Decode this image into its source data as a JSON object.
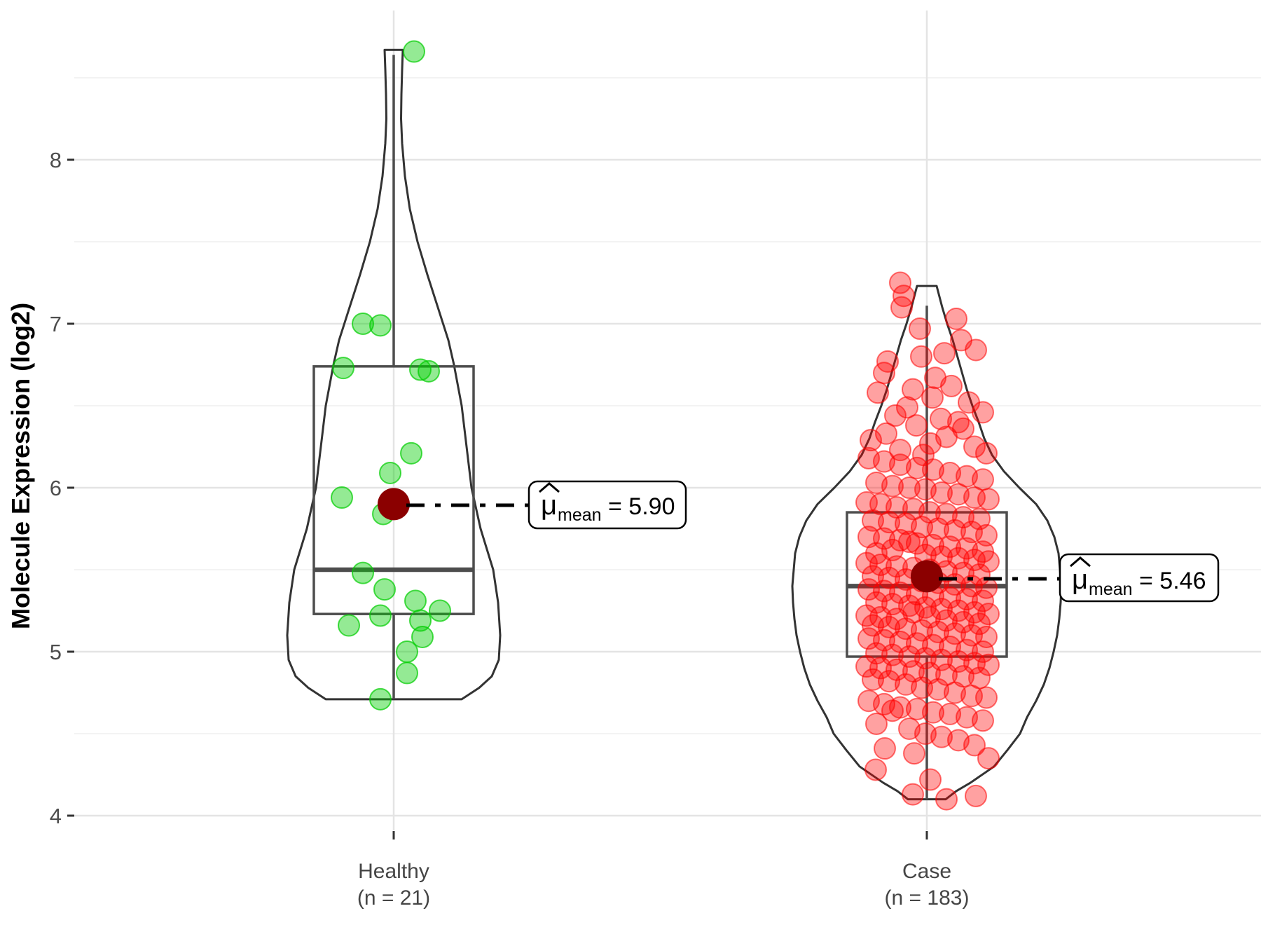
{
  "figure": {
    "background": "#ffffff"
  },
  "colors": {
    "healthy_point_fill": "rgba(0,205,0,0.42)",
    "healthy_point_stroke": "rgba(0,205,0,0.70)",
    "case_point_fill": "rgba(255,0,0,0.37)",
    "case_point_stroke": "rgba(255,0,0,0.55)",
    "mean_dot": "#8B0000",
    "violin_outline": "#333333",
    "box_stroke": "#4d4d4d",
    "grid_major": "#e4e4e4",
    "grid_minor": "#efefef",
    "axis_text": "#4d4d4d"
  },
  "chart_data": {
    "type": "violin",
    "title": "",
    "ylabel": "Molecule Expression (log2)",
    "xlabel": "",
    "ylim": [
      3.9,
      8.85
    ],
    "grid": "on",
    "y_ticks": [
      {
        "label": "8",
        "value": 8
      },
      {
        "label": "7",
        "value": 7
      },
      {
        "label": "6",
        "value": 6
      },
      {
        "label": "5",
        "value": 5
      },
      {
        "label": "4",
        "value": 4
      }
    ],
    "y_minor": [
      8.5,
      7.5,
      6.5,
      5.5,
      4.5
    ],
    "groups": [
      {
        "name": "Healthy",
        "n": 21,
        "x_label_line1": "Healthy",
        "x_label_line2": "(n = 21)",
        "mean": 5.9,
        "median": 5.5,
        "q1": 5.23,
        "q3": 6.74,
        "whisker_low": 4.71,
        "whisker_high": 8.64,
        "annotation": {
          "mu": "μ",
          "sub": "mean",
          "value": "= 5.90"
        },
        "point_fill": "rgba(0,205,0,0.42)",
        "point_stroke": "rgba(0,205,0,0.70)",
        "violin_profile": [
          [
            8.67,
            13
          ],
          [
            8.55,
            12
          ],
          [
            8.4,
            11
          ],
          [
            8.25,
            10.5
          ],
          [
            8.1,
            12
          ],
          [
            7.9,
            16
          ],
          [
            7.7,
            23
          ],
          [
            7.5,
            34
          ],
          [
            7.3,
            48
          ],
          [
            7.1,
            63
          ],
          [
            6.9,
            78
          ],
          [
            6.75,
            86
          ],
          [
            6.5,
            97
          ],
          [
            6.25,
            104
          ],
          [
            6.0,
            111
          ],
          [
            5.75,
            124
          ],
          [
            5.5,
            142
          ],
          [
            5.3,
            149
          ],
          [
            5.1,
            152
          ],
          [
            4.95,
            150
          ],
          [
            4.85,
            140
          ],
          [
            4.78,
            122
          ],
          [
            4.71,
            97
          ]
        ],
        "points": [
          [
            29,
            8.66
          ],
          [
            -44,
            7.0
          ],
          [
            -19,
            6.99
          ],
          [
            -72,
            6.73
          ],
          [
            38,
            6.72
          ],
          [
            50,
            6.71
          ],
          [
            25,
            6.21
          ],
          [
            -5,
            6.09
          ],
          [
            -74,
            5.94
          ],
          [
            -15,
            5.84
          ],
          [
            -44,
            5.48
          ],
          [
            -13,
            5.38
          ],
          [
            31,
            5.31
          ],
          [
            66,
            5.25
          ],
          [
            -19,
            5.22
          ],
          [
            38,
            5.19
          ],
          [
            -64,
            5.16
          ],
          [
            41,
            5.09
          ],
          [
            19,
            5.0
          ],
          [
            19,
            4.87
          ],
          [
            -19,
            4.71
          ]
        ]
      },
      {
        "name": "Case",
        "n": 183,
        "x_label_line1": "Case",
        "x_label_line2": "(n = 183)",
        "mean": 5.46,
        "median": 5.4,
        "q1": 4.97,
        "q3": 5.85,
        "whisker_low": 4.1,
        "whisker_high": 7.11,
        "annotation": {
          "mu": "μ",
          "sub": "mean",
          "value": "= 5.46"
        },
        "point_fill": "rgba(255,0,0,0.37)",
        "point_stroke": "rgba(255,0,0,0.55)",
        "violin_profile": [
          [
            7.23,
            14
          ],
          [
            7.1,
            22
          ],
          [
            7.0,
            29
          ],
          [
            6.9,
            37
          ],
          [
            6.75,
            47
          ],
          [
            6.6,
            57
          ],
          [
            6.5,
            65
          ],
          [
            6.4,
            74
          ],
          [
            6.3,
            82
          ],
          [
            6.2,
            93
          ],
          [
            6.1,
            110
          ],
          [
            6.0,
            132
          ],
          [
            5.9,
            156
          ],
          [
            5.8,
            172
          ],
          [
            5.7,
            182
          ],
          [
            5.6,
            188
          ],
          [
            5.5,
            190
          ],
          [
            5.4,
            192
          ],
          [
            5.3,
            191
          ],
          [
            5.2,
            189
          ],
          [
            5.1,
            186
          ],
          [
            5.0,
            181
          ],
          [
            4.9,
            175
          ],
          [
            4.8,
            167
          ],
          [
            4.7,
            156
          ],
          [
            4.6,
            143
          ],
          [
            4.5,
            133
          ],
          [
            4.4,
            115
          ],
          [
            4.3,
            96
          ],
          [
            4.2,
            62
          ],
          [
            4.15,
            42
          ],
          [
            4.1,
            27
          ]
        ],
        "points": [
          [
            -38,
            7.25
          ],
          [
            -33,
            7.17
          ],
          [
            -36,
            7.1
          ],
          [
            42,
            7.03
          ],
          [
            -10,
            6.97
          ],
          [
            49,
            6.9
          ],
          [
            70,
            6.84
          ],
          [
            25,
            6.82
          ],
          [
            -8,
            6.8
          ],
          [
            -56,
            6.77
          ],
          [
            -61,
            6.7
          ],
          [
            12,
            6.67
          ],
          [
            35,
            6.62
          ],
          [
            -20,
            6.6
          ],
          [
            -70,
            6.58
          ],
          [
            8,
            6.55
          ],
          [
            60,
            6.52
          ],
          [
            -28,
            6.49
          ],
          [
            80,
            6.46
          ],
          [
            -45,
            6.44
          ],
          [
            20,
            6.42
          ],
          [
            45,
            6.4
          ],
          [
            -15,
            6.38
          ],
          [
            52,
            6.36
          ],
          [
            -58,
            6.33
          ],
          [
            28,
            6.31
          ],
          [
            -80,
            6.29
          ],
          [
            5,
            6.27
          ],
          [
            68,
            6.25
          ],
          [
            -38,
            6.23
          ],
          [
            85,
            6.21
          ],
          [
            -5,
            6.2
          ],
          [
            -83,
            6.18
          ],
          [
            -61,
            6.16
          ],
          [
            -38,
            6.14
          ],
          [
            -14,
            6.12
          ],
          [
            9,
            6.11
          ],
          [
            33,
            6.09
          ],
          [
            57,
            6.07
          ],
          [
            80,
            6.05
          ],
          [
            -72,
            6.03
          ],
          [
            -49,
            6.01
          ],
          [
            -25,
            6.0
          ],
          [
            -2,
            5.99
          ],
          [
            21,
            5.97
          ],
          [
            45,
            5.96
          ],
          [
            68,
            5.94
          ],
          [
            88,
            5.93
          ],
          [
            -86,
            5.91
          ],
          [
            -66,
            5.9
          ],
          [
            -43,
            5.88
          ],
          [
            -19,
            5.87
          ],
          [
            4,
            5.85
          ],
          [
            28,
            5.84
          ],
          [
            52,
            5.82
          ],
          [
            75,
            5.81
          ],
          [
            -77,
            5.8
          ],
          [
            -54,
            5.79
          ],
          [
            -30,
            5.78
          ],
          [
            -7,
            5.76
          ],
          [
            16,
            5.75
          ],
          [
            40,
            5.74
          ],
          [
            64,
            5.73
          ],
          [
            85,
            5.71
          ],
          [
            -83,
            5.7
          ],
          [
            -61,
            5.69
          ],
          [
            -38,
            5.68
          ],
          [
            -25,
            5.67
          ],
          [
            -14,
            5.66
          ],
          [
            9,
            5.65
          ],
          [
            33,
            5.64
          ],
          [
            57,
            5.63
          ],
          [
            -49,
            5.62
          ],
          [
            80,
            5.61
          ],
          [
            -72,
            5.6
          ],
          [
            -2,
            5.59
          ],
          [
            21,
            5.58
          ],
          [
            45,
            5.57
          ],
          [
            68,
            5.56
          ],
          [
            88,
            5.55
          ],
          [
            -86,
            5.54
          ],
          [
            -66,
            5.53
          ],
          [
            -43,
            5.52
          ],
          [
            -19,
            5.51
          ],
          [
            4,
            5.5
          ],
          [
            28,
            5.49
          ],
          [
            52,
            5.48
          ],
          [
            75,
            5.47
          ],
          [
            -77,
            5.46
          ],
          [
            -54,
            5.45
          ],
          [
            -30,
            5.44
          ],
          [
            -7,
            5.43
          ],
          [
            16,
            5.42
          ],
          [
            40,
            5.41
          ],
          [
            64,
            5.4
          ],
          [
            85,
            5.39
          ],
          [
            -83,
            5.38
          ],
          [
            -61,
            5.37
          ],
          [
            -38,
            5.36
          ],
          [
            -14,
            5.35
          ],
          [
            9,
            5.34
          ],
          [
            33,
            5.33
          ],
          [
            57,
            5.32
          ],
          [
            80,
            5.31
          ],
          [
            -72,
            5.3
          ],
          [
            -49,
            5.29
          ],
          [
            -25,
            5.28
          ],
          [
            -2,
            5.27
          ],
          [
            21,
            5.26
          ],
          [
            45,
            5.25
          ],
          [
            68,
            5.24
          ],
          [
            88,
            5.23
          ],
          [
            -86,
            5.22
          ],
          [
            -66,
            5.21
          ],
          [
            -43,
            5.2
          ],
          [
            -19,
            5.24
          ],
          [
            4,
            5.21
          ],
          [
            28,
            5.19
          ],
          [
            52,
            5.18
          ],
          [
            75,
            5.17
          ],
          [
            -77,
            5.16
          ],
          [
            -54,
            5.15
          ],
          [
            -30,
            5.14
          ],
          [
            -7,
            5.13
          ],
          [
            16,
            5.12
          ],
          [
            40,
            5.11
          ],
          [
            64,
            5.1
          ],
          [
            85,
            5.09
          ],
          [
            -83,
            5.08
          ],
          [
            -61,
            5.07
          ],
          [
            -38,
            5.06
          ],
          [
            -14,
            5.05
          ],
          [
            9,
            5.04
          ],
          [
            33,
            5.03
          ],
          [
            57,
            5.01
          ],
          [
            80,
            5.0
          ],
          [
            -72,
            4.99
          ],
          [
            -49,
            4.98
          ],
          [
            -25,
            4.97
          ],
          [
            -2,
            4.96
          ],
          [
            21,
            4.95
          ],
          [
            45,
            4.94
          ],
          [
            68,
            4.93
          ],
          [
            88,
            4.92
          ],
          [
            -86,
            4.91
          ],
          [
            -66,
            4.9
          ],
          [
            -43,
            4.89
          ],
          [
            -19,
            4.88
          ],
          [
            4,
            4.87
          ],
          [
            28,
            4.86
          ],
          [
            52,
            4.85
          ],
          [
            75,
            4.84
          ],
          [
            -77,
            4.83
          ],
          [
            -54,
            4.82
          ],
          [
            -30,
            4.8
          ],
          [
            -7,
            4.78
          ],
          [
            16,
            4.77
          ],
          [
            40,
            4.75
          ],
          [
            64,
            4.73
          ],
          [
            85,
            4.72
          ],
          [
            -83,
            4.7
          ],
          [
            -61,
            4.68
          ],
          [
            -38,
            4.66
          ],
          [
            -14,
            4.65
          ],
          [
            9,
            4.63
          ],
          [
            33,
            4.62
          ],
          [
            57,
            4.6
          ],
          [
            -49,
            4.64
          ],
          [
            80,
            4.58
          ],
          [
            -72,
            4.56
          ],
          [
            -25,
            4.53
          ],
          [
            -2,
            4.5
          ],
          [
            21,
            4.48
          ],
          [
            45,
            4.46
          ],
          [
            68,
            4.43
          ],
          [
            -60,
            4.41
          ],
          [
            -18,
            4.38
          ],
          [
            88,
            4.35
          ],
          [
            -73,
            4.28
          ],
          [
            5,
            4.22
          ],
          [
            70,
            4.12
          ],
          [
            -20,
            4.13
          ],
          [
            28,
            4.1
          ]
        ]
      }
    ]
  }
}
